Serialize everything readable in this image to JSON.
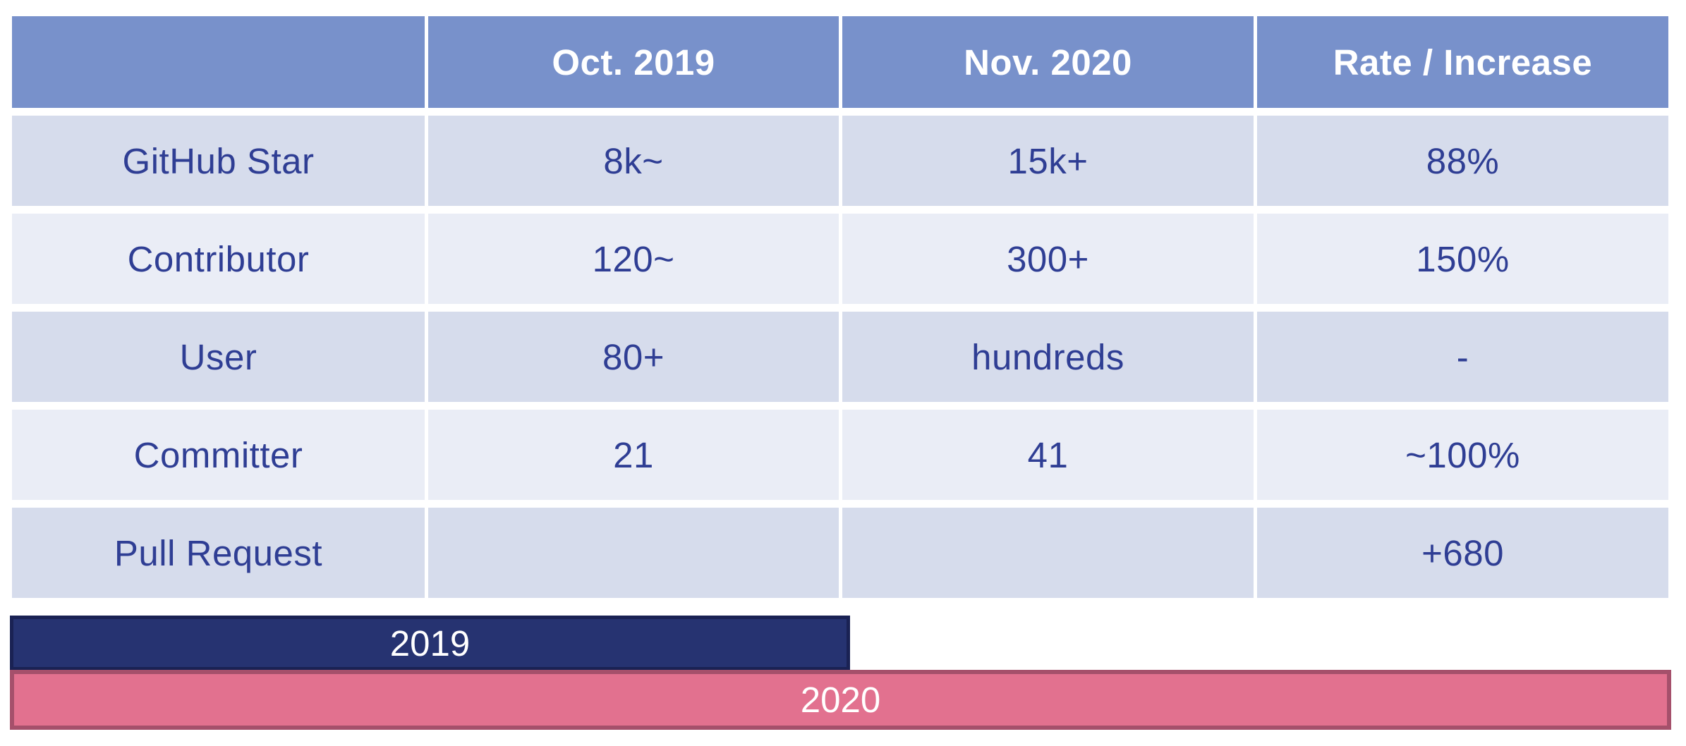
{
  "chart_data": [
    {
      "type": "table",
      "title": "",
      "columns": [
        "",
        "Oct. 2019",
        "Nov. 2020",
        "Rate / Increase"
      ],
      "rows": [
        [
          "GitHub Star",
          "8k~",
          "15k+",
          "88%"
        ],
        [
          "Contributor",
          "120~",
          "300+",
          "150%"
        ],
        [
          "User",
          "80+",
          "hundreds",
          "-"
        ],
        [
          "Committer",
          "21",
          "41",
          "~100%"
        ],
        [
          "Pull Request",
          "",
          "",
          "+680"
        ]
      ]
    },
    {
      "type": "bar",
      "orientation": "horizontal",
      "bars": [
        {
          "label": "2019",
          "relative_length": 0.5
        },
        {
          "label": "2020",
          "relative_length": 0.99
        }
      ]
    }
  ],
  "table": {
    "columns": [
      "",
      "Oct. 2019",
      "Nov. 2020",
      "Rate / Increase"
    ],
    "rows": [
      {
        "label": "GitHub Star",
        "values": [
          "8k~",
          "15k+",
          "88%"
        ]
      },
      {
        "label": "Contributor",
        "values": [
          "120~",
          "300+",
          "150%"
        ]
      },
      {
        "label": "User",
        "values": [
          "80+",
          "hundreds",
          "-"
        ]
      },
      {
        "label": "Committer",
        "values": [
          "21",
          "41",
          "~100%"
        ]
      },
      {
        "label": "Pull Request",
        "values": [
          "",
          "",
          "+680"
        ]
      }
    ]
  },
  "timeline": {
    "bars": [
      {
        "label": "2019",
        "fill": "#263371",
        "border": "#1A2254"
      },
      {
        "label": "2020",
        "fill": "#E2718F",
        "border": "#A5506B"
      }
    ]
  },
  "colors": {
    "header_bg": "#7891CB",
    "header_text": "#FFFFFF",
    "row_shade_dark": "#D6DCEC",
    "row_shade_light": "#EAEDF6",
    "body_text": "#2F3E94",
    "bar_2019_fill": "#263371",
    "bar_2019_border": "#1A2254",
    "bar_2020_fill": "#E2718F",
    "bar_2020_border": "#A5506B",
    "background": "#FFFFFF"
  }
}
